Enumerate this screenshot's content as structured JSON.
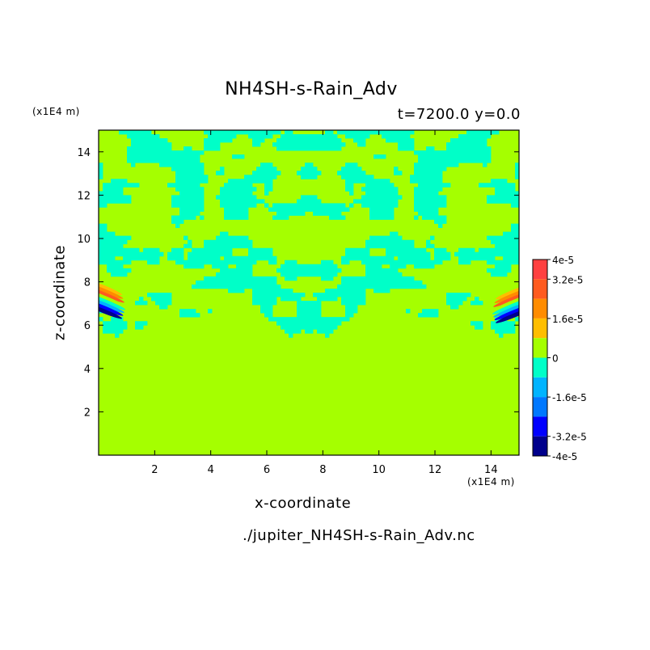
{
  "chart_data": {
    "type": "heatmap",
    "title": "NH4SH-s-Rain_Adv",
    "subtitle": "t=7200.0 y=0.0",
    "xlabel": "x-coordinate",
    "ylabel": "z-coordinate",
    "x_unit": "(x1E4 m)",
    "y_unit": "(x1E4 m)",
    "source_file": "./jupiter_NH4SH-s-Rain_Adv.nc",
    "xlim": [
      0,
      15
    ],
    "ylim": [
      0,
      15
    ],
    "x_ticks": [
      2,
      4,
      6,
      8,
      10,
      12,
      14
    ],
    "y_ticks": [
      2,
      4,
      6,
      8,
      10,
      12,
      14
    ],
    "colorbar": {
      "range": [
        -4e-05,
        4e-05
      ],
      "tick_labels": [
        "4e-5",
        "3.2e-5",
        "1.6e-5",
        "0",
        "-1.6e-5",
        "-3.2e-5",
        "-4e-5"
      ],
      "tick_values": [
        4e-05,
        3.2e-05,
        1.6e-05,
        0,
        -1.6e-05,
        -3.2e-05,
        -4e-05
      ],
      "levels": [
        {
          "from": 3.2e-05,
          "to": 4e-05,
          "color": "#ff4040"
        },
        {
          "from": 2.4e-05,
          "to": 3.2e-05,
          "color": "#ff5a1e"
        },
        {
          "from": 1.6e-05,
          "to": 2.4e-05,
          "color": "#ff8c00"
        },
        {
          "from": 8e-06,
          "to": 1.6e-05,
          "color": "#ffbe00"
        },
        {
          "from": 0,
          "to": 8e-06,
          "color": "#a5ff00"
        },
        {
          "from": -8e-06,
          "to": 0,
          "color": "#00ffc8"
        },
        {
          "from": -1.6e-05,
          "to": -8e-06,
          "color": "#00b4ff"
        },
        {
          "from": -2.4e-05,
          "to": -1.6e-05,
          "color": "#0078ff"
        },
        {
          "from": -3.2e-05,
          "to": -2.4e-05,
          "color": "#0000ff"
        },
        {
          "from": -4e-05,
          "to": -3.2e-05,
          "color": "#00008c"
        }
      ]
    },
    "field_summary": {
      "background_color": "#a5ff00",
      "negative_filament_color": "#00ffc8",
      "turbulent_layer_z": [
        5,
        15
      ],
      "symmetry": "mirror about x=7.5",
      "edge_features": [
        {
          "x": 0.3,
          "z": 7.2,
          "description": "positive/negative dipole at left boundary"
        },
        {
          "x": 14.7,
          "z": 7.0,
          "description": "positive/negative dipole at right boundary"
        }
      ]
    }
  }
}
